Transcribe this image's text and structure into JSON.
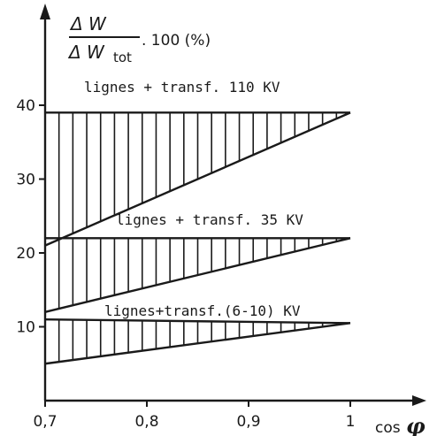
{
  "chart_data": {
    "type": "area",
    "x_ticks": [
      0.7,
      0.8,
      0.9,
      1
    ],
    "x_tick_labels": [
      "0,7",
      "0,8",
      "0,9",
      "1"
    ],
    "y_ticks": [
      10,
      20,
      30,
      40
    ],
    "y_tick_labels": [
      "10",
      "20",
      "30",
      "40"
    ],
    "xlim": [
      0.7,
      1.0
    ],
    "ylim": [
      0,
      44
    ],
    "xlabel": {
      "text": "cos",
      "symbol": "φ"
    },
    "ylabel": {
      "numerator": "Δ W",
      "denominator": "Δ W",
      "subscript": "tot",
      "suffix": ". 100 (%)"
    },
    "grid": false,
    "bands": [
      {
        "label": "lignes + transf. 110 KV",
        "x": [
          0.7,
          1.0
        ],
        "upper": [
          39,
          39
        ],
        "lower": [
          21,
          39
        ]
      },
      {
        "label": "lignes + transf. 35 KV",
        "x": [
          0.7,
          1.0
        ],
        "upper": [
          22,
          22
        ],
        "lower": [
          12,
          22
        ]
      },
      {
        "label": "lignes+transf.(6-10) KV",
        "x": [
          0.7,
          1.0
        ],
        "upper": [
          11,
          10.5
        ],
        "lower": [
          5,
          10.5
        ]
      }
    ],
    "colors": {
      "ink": "#1a1a1a",
      "background": "#ffffff"
    }
  }
}
